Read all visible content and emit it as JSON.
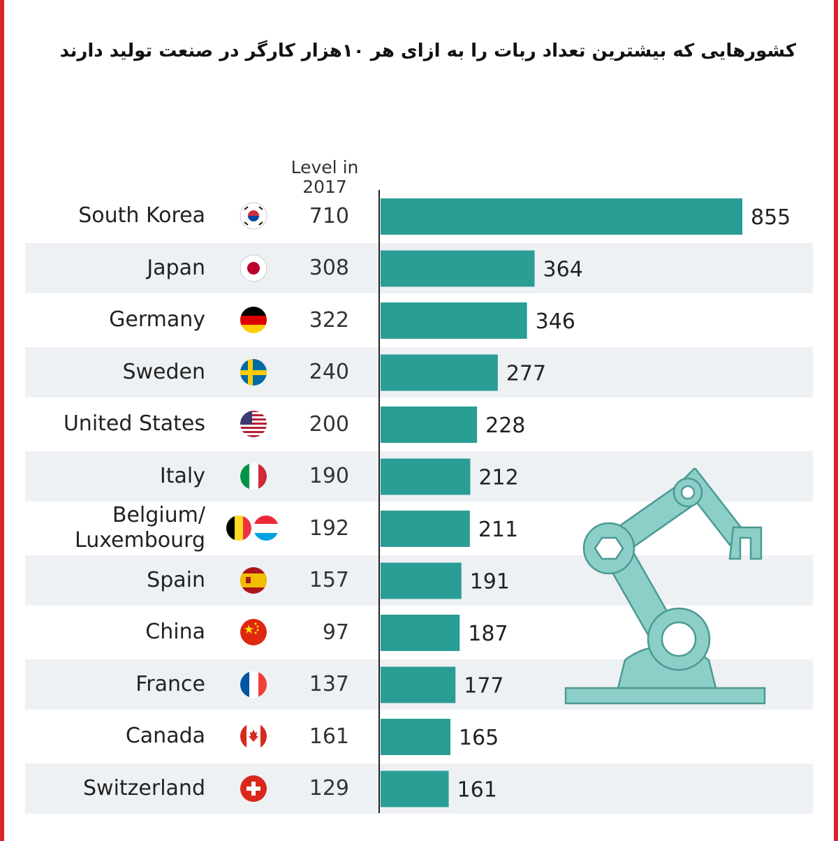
{
  "title": "کشورهایی که بیشترین تعداد ربات را به ازای هر ۱۰هزار کارگر در صنعت تولید  دارند",
  "column_header_line1": "Level in",
  "column_header_line2": "2017",
  "colors": {
    "bar": "#2a9d95",
    "frame": "#d8242a",
    "row_shade": "#eef1f4",
    "robot": "#8ccfc8"
  },
  "chart_data": {
    "type": "bar",
    "orientation": "horizontal",
    "title": "کشورهایی که بیشترین تعداد ربات را به ازای هر ۱۰هزار کارگر در صنعت تولید  دارند",
    "categories": [
      "South Korea",
      "Japan",
      "Germany",
      "Sweden",
      "United States",
      "Italy",
      "Belgium/ Luxembourg",
      "Spain",
      "China",
      "France",
      "Canada",
      "Switzerland"
    ],
    "series": [
      {
        "values": [
          855,
          364,
          346,
          277,
          228,
          212,
          211,
          191,
          187,
          177,
          165,
          161
        ]
      }
    ],
    "level_2017": [
      710,
      308,
      322,
      240,
      200,
      190,
      192,
      157,
      97,
      137,
      161,
      129
    ],
    "xlim": [
      0,
      855
    ],
    "grid": false
  },
  "rows": [
    {
      "country": "South Korea",
      "flag": "south-korea-flag-icon",
      "level": "710",
      "value_label": "855"
    },
    {
      "country": "Japan",
      "flag": "japan-flag-icon",
      "level": "308",
      "value_label": "364"
    },
    {
      "country": "Germany",
      "flag": "germany-flag-icon",
      "level": "322",
      "value_label": "346"
    },
    {
      "country": "Sweden",
      "flag": "sweden-flag-icon",
      "level": "240",
      "value_label": "277"
    },
    {
      "country": "United States",
      "flag": "united-states-flag-icon",
      "level": "200",
      "value_label": "228"
    },
    {
      "country": "Italy",
      "flag": "italy-flag-icon",
      "level": "190",
      "value_label": "212"
    },
    {
      "country_line1": "Belgium/",
      "country_line2": "Luxembourg",
      "flag": "belgium-luxembourg-flags-icon",
      "level": "192",
      "value_label": "211"
    },
    {
      "country": "Spain",
      "flag": "spain-flag-icon",
      "level": "157",
      "value_label": "191"
    },
    {
      "country": "China",
      "flag": "china-flag-icon",
      "level": "97",
      "value_label": "187"
    },
    {
      "country": "France",
      "flag": "france-flag-icon",
      "level": "137",
      "value_label": "177"
    },
    {
      "country": "Canada",
      "flag": "canada-flag-icon",
      "level": "161",
      "value_label": "165"
    },
    {
      "country": "Switzerland",
      "flag": "switzerland-flag-icon",
      "level": "129",
      "value_label": "161"
    }
  ],
  "illustration": "robot-arm-icon"
}
